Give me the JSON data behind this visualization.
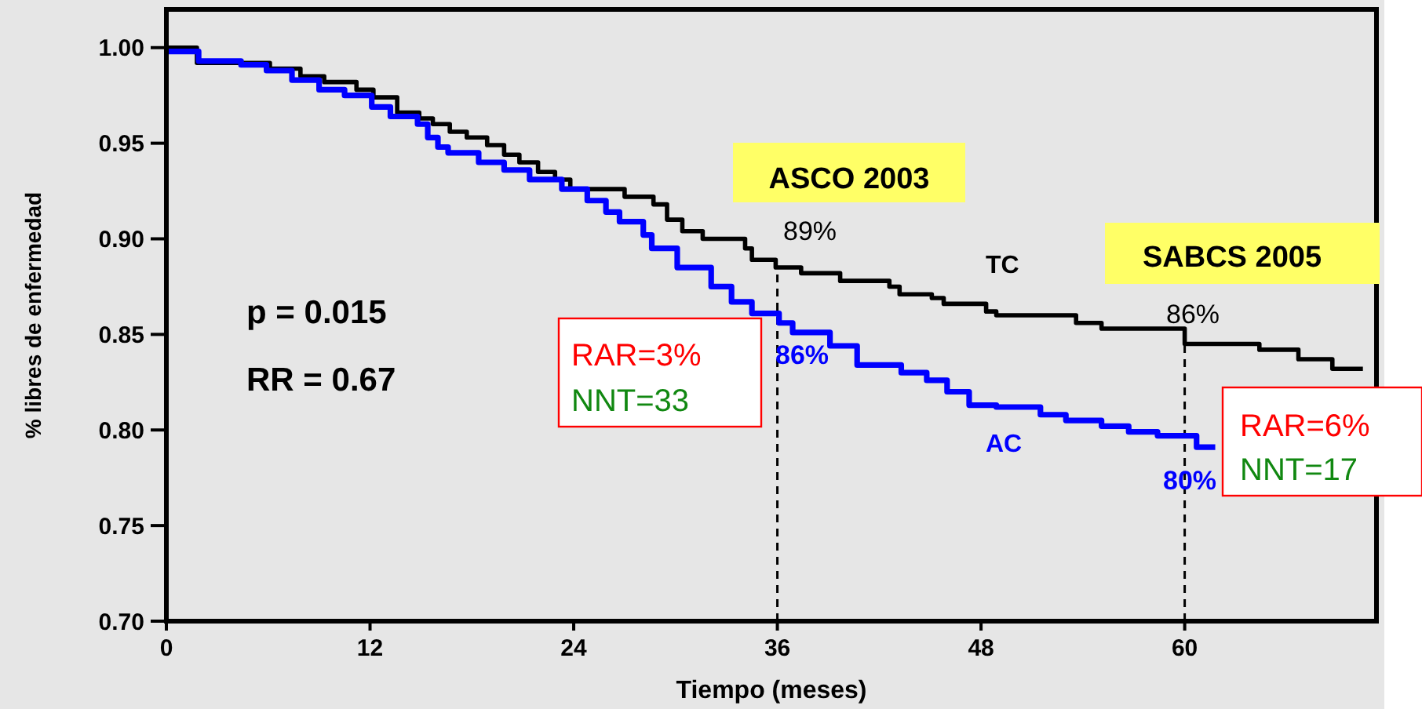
{
  "chart_data": {
    "type": "step",
    "xlabel": "Tiempo (meses)",
    "ylabel": "% libres de enfermedad",
    "xlim": [
      0,
      71.3
    ],
    "xticks": [
      0,
      12,
      24,
      36,
      48,
      60
    ],
    "ylim": [
      0.7,
      1.02
    ],
    "yticks": [
      {
        "value": 0.7,
        "label": "0.70"
      },
      {
        "value": 0.75,
        "label": "0.75"
      },
      {
        "value": 0.8,
        "label": "0.80"
      },
      {
        "value": 0.85,
        "label": "0.85"
      },
      {
        "value": 0.9,
        "label": "0.90"
      },
      {
        "value": 0.95,
        "label": "0.95"
      },
      {
        "value": 1.0,
        "label": "1.00"
      }
    ],
    "grid": false,
    "marker": "none",
    "line_style": "solid",
    "series": [
      {
        "name": "TC",
        "color": "#000000",
        "x": [
          0,
          1.8,
          6.1,
          7.9,
          9.3,
          11.2,
          12.2,
          13.6,
          14.9,
          15.7,
          16.7,
          17.7,
          18.9,
          19.9,
          20.8,
          21.9,
          22.9,
          23.8,
          27.0,
          28.7,
          29.5,
          30.4,
          31.6,
          34.1,
          34.5,
          35.9,
          37.4,
          39.7,
          42.6,
          43.2,
          45.1,
          45.8,
          48.3,
          48.9,
          53.6,
          55.1,
          60.0,
          64.4,
          66.7,
          68.7,
          70.5
        ],
        "values": [
          1.0,
          0.992,
          0.989,
          0.985,
          0.982,
          0.978,
          0.974,
          0.966,
          0.963,
          0.96,
          0.956,
          0.953,
          0.949,
          0.944,
          0.94,
          0.935,
          0.931,
          0.926,
          0.922,
          0.918,
          0.91,
          0.904,
          0.9,
          0.895,
          0.889,
          0.885,
          0.882,
          0.878,
          0.875,
          0.871,
          0.869,
          0.866,
          0.862,
          0.86,
          0.856,
          0.853,
          0.845,
          0.842,
          0.837,
          0.832,
          0.832
        ]
      },
      {
        "name": "AC",
        "color": "#0000ff",
        "x": [
          0,
          1.9,
          4.4,
          5.9,
          7.4,
          9.0,
          10.5,
          12.1,
          13.2,
          14.8,
          15.4,
          16.0,
          16.6,
          18.4,
          19.9,
          21.4,
          23.3,
          24.8,
          25.9,
          26.7,
          28.1,
          28.6,
          30.1,
          32.1,
          33.3,
          34.5,
          36.1,
          36.9,
          39.1,
          40.7,
          43.3,
          44.8,
          46.0,
          47.3,
          48.9,
          51.5,
          53.0,
          55.1,
          56.7,
          58.4,
          60.7,
          61.8
        ],
        "values": [
          0.998,
          0.993,
          0.991,
          0.988,
          0.983,
          0.978,
          0.975,
          0.969,
          0.964,
          0.96,
          0.953,
          0.948,
          0.945,
          0.94,
          0.936,
          0.931,
          0.926,
          0.92,
          0.914,
          0.909,
          0.902,
          0.895,
          0.885,
          0.875,
          0.867,
          0.861,
          0.856,
          0.851,
          0.844,
          0.834,
          0.83,
          0.826,
          0.82,
          0.813,
          0.812,
          0.808,
          0.805,
          0.802,
          0.799,
          0.797,
          0.791,
          0.791
        ]
      }
    ],
    "ref_lines": [
      {
        "axis": "x",
        "value": 36,
        "line_style": "dashed",
        "color": "#000000"
      },
      {
        "axis": "x",
        "value": 60,
        "line_style": "dashed",
        "color": "#000000"
      }
    ],
    "annotations": [
      "p = 0.015",
      "RR = 0.67",
      "ASCO 2003",
      "SABCS 2005",
      "89%",
      "86%",
      "86%",
      "80%",
      "RAR=3%",
      "NNT=33",
      "RAR=6%",
      "NNT=17"
    ]
  }
}
